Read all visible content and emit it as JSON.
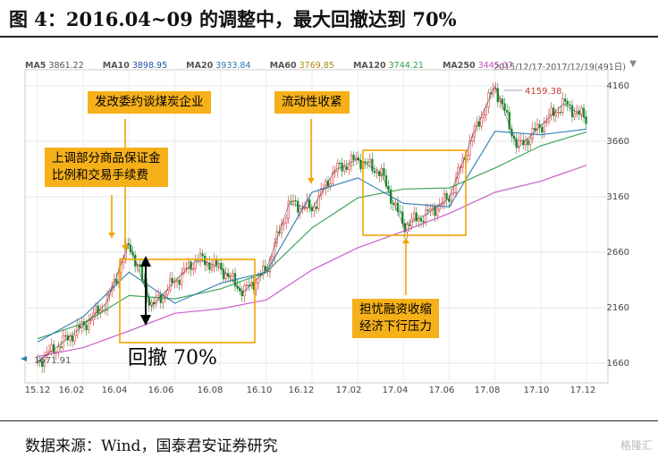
{
  "title": "图 4：2016.04~09 的调整中，最大回撤达到 70%",
  "legend": [
    {
      "name": "MA5",
      "value": "3861.22",
      "color": "#555555"
    },
    {
      "name": "MA10",
      "value": "3898.95",
      "color": "#1f4fa8"
    },
    {
      "name": "MA20",
      "value": "3933.84",
      "color": "#2a7ab0"
    },
    {
      "name": "MA60",
      "value": "3769.85",
      "color": "#2e9b4a"
    },
    {
      "name": "MA120",
      "value": "3744.21",
      "color": "#2e9b4a"
    },
    {
      "name": "MA250",
      "value": "3445.07",
      "color": "#c44fc4"
    }
  ],
  "date_range": "2015/12/17-2017/12/19(491日)",
  "callouts": {
    "ndrc": "发改委约谈煤炭企业",
    "liquidity": "流动性收紧",
    "margin_line1": "上调部分商品保证金",
    "margin_line2": "比例和交易手续费",
    "worry_line1": "担忧融资收缩",
    "worry_line2": "经济下行压力"
  },
  "retrace_label": "回撤 70%",
  "source": "数据来源：Wind，国泰君安证券研究",
  "watermark": "格隆汇",
  "colors": {
    "callout": "#f5b01a",
    "box": "#f0a500",
    "up": "#d62728",
    "down": "#1a8a2a"
  },
  "chart_data": {
    "type": "line",
    "x_ticks": [
      "15.12",
      "16.02",
      "16.04",
      "16.06",
      "16.08",
      "16.10",
      "16.12",
      "17.02",
      "17.04",
      "17.06",
      "17.08",
      "17.10",
      "17.12"
    ],
    "y_ticks": [
      1660,
      2160,
      2660,
      3160,
      3660,
      4160
    ],
    "ylim": [
      1500,
      4300
    ],
    "annotations": {
      "low": "1671.91",
      "high": "4159.38"
    },
    "series": [
      {
        "name": "MA250",
        "color": "#c44fc4",
        "x": [
          "15.12",
          "16.02",
          "16.04",
          "16.06",
          "16.08",
          "16.10",
          "16.12",
          "17.02",
          "17.04",
          "17.06",
          "17.08",
          "17.10",
          "17.12"
        ],
        "values": [
          1720,
          1800,
          1950,
          2110,
          2150,
          2230,
          2500,
          2700,
          2850,
          3010,
          3200,
          3300,
          3445
        ]
      },
      {
        "name": "MA120",
        "color": "#2e9b4a",
        "x": [
          "15.12",
          "16.02",
          "16.04",
          "16.06",
          "16.08",
          "16.10",
          "16.12",
          "17.02",
          "17.04",
          "17.06",
          "17.08",
          "17.10",
          "17.12"
        ],
        "values": [
          1880,
          2020,
          2270,
          2240,
          2330,
          2480,
          2880,
          3150,
          3230,
          3240,
          3420,
          3620,
          3744
        ]
      },
      {
        "name": "MA60",
        "color": "#2a7ab0",
        "x": [
          "15.12",
          "16.02",
          "16.04",
          "16.06",
          "16.08",
          "16.10",
          "16.12",
          "17.02",
          "17.04",
          "17.06",
          "17.08",
          "17.10",
          "17.12"
        ],
        "values": [
          1850,
          2080,
          2480,
          2200,
          2380,
          2480,
          3200,
          3330,
          3100,
          3070,
          3750,
          3720,
          3770
        ]
      },
      {
        "name": "Close",
        "color": "#333333",
        "x": [
          "15.12",
          "16.01",
          "16.02",
          "16.03",
          "16.04",
          "16.05",
          "16.06",
          "16.07",
          "16.08",
          "16.09",
          "16.10",
          "16.11",
          "16.12",
          "17.01",
          "17.02",
          "17.03",
          "17.04",
          "17.05",
          "17.06",
          "17.07",
          "17.08",
          "17.09",
          "17.10",
          "17.11",
          "17.12"
        ],
        "values": [
          1672,
          1830,
          2000,
          2200,
          2740,
          2170,
          2400,
          2600,
          2520,
          2300,
          2500,
          3100,
          3050,
          3400,
          3500,
          3380,
          2900,
          3000,
          3150,
          3700,
          4159,
          3600,
          3800,
          4000,
          3861
        ]
      }
    ]
  }
}
